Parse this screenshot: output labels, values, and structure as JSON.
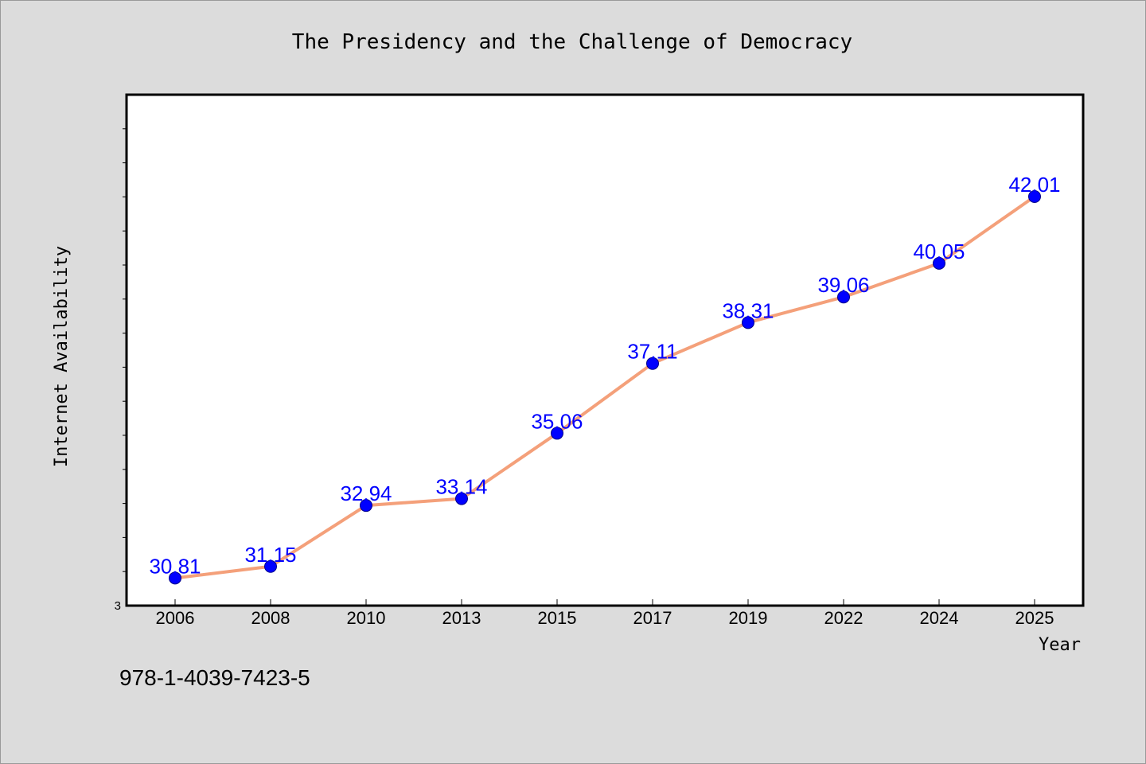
{
  "chart_data": {
    "type": "line",
    "title": "The Presidency and the Challenge of Democracy",
    "xlabel": "Year",
    "ylabel": "Internet Availability",
    "categories": [
      "2006",
      "2008",
      "2010",
      "2013",
      "2015",
      "2017",
      "2019",
      "2022",
      "2024",
      "2025"
    ],
    "series": [
      {
        "values": [
          30.81,
          31.15,
          32.94,
          33.14,
          35.06,
          37.11,
          38.31,
          39.06,
          40.05,
          42.01
        ]
      }
    ],
    "data_labels": [
      "30.81",
      "31.15",
      "32.94",
      "33.14",
      "35.06",
      "37.11",
      "38.31",
      "39.06",
      "40.05",
      "42.01"
    ],
    "ytick_labels": [
      "3"
    ],
    "ylim": [
      30.0,
      45.0
    ],
    "grid": false,
    "legend": "none",
    "colors": {
      "line": "#f4a07a",
      "marker": "#0000ff",
      "label": "#0000ff",
      "plot_bg": "#ffffff",
      "page_bg": "#dcdcdc"
    }
  },
  "footer": {
    "isbn": "978-1-4039-7423-5"
  }
}
